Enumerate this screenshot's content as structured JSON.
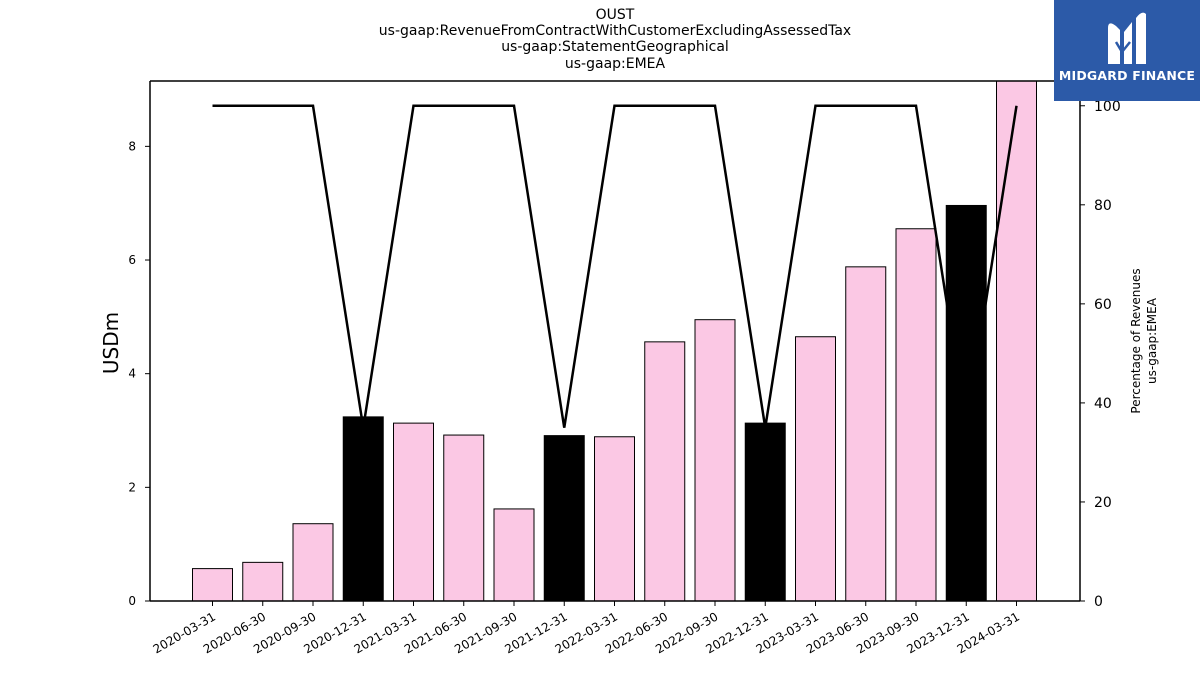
{
  "title_lines": [
    "OUST",
    "us-gaap:RevenueFromContractWithCustomerExcludingAssessedTax",
    "us-gaap:StatementGeographical",
    "us-gaap:EMEA"
  ],
  "logo": {
    "text": "MIDGARD FINANCE",
    "background": "#2c5aa8"
  },
  "chart_data": {
    "type": "bar",
    "categories": [
      "2020-03-31",
      "2020-06-30",
      "2020-09-30",
      "2020-12-31",
      "2021-03-31",
      "2021-06-30",
      "2021-09-30",
      "2021-12-31",
      "2022-03-31",
      "2022-06-30",
      "2022-09-30",
      "2022-12-31",
      "2023-03-31",
      "2023-06-30",
      "2023-09-30",
      "2023-12-31",
      "2024-03-31"
    ],
    "series": [
      {
        "kind": "bar",
        "axis": "left",
        "values": [
          0.57,
          0.68,
          1.36,
          3.24,
          3.13,
          2.92,
          1.62,
          2.91,
          2.89,
          4.56,
          4.95,
          3.13,
          4.65,
          5.88,
          6.55,
          6.96,
          9.2
        ],
        "colors": [
          "#fbc8e4",
          "#fbc8e4",
          "#fbc8e4",
          "#000000",
          "#fbc8e4",
          "#fbc8e4",
          "#fbc8e4",
          "#000000",
          "#fbc8e4",
          "#fbc8e4",
          "#fbc8e4",
          "#000000",
          "#fbc8e4",
          "#fbc8e4",
          "#fbc8e4",
          "#000000",
          "#fbc8e4"
        ]
      },
      {
        "kind": "line",
        "axis": "right",
        "color": "#000000",
        "values": [
          100,
          100,
          100,
          35,
          100,
          100,
          100,
          35,
          100,
          100,
          100,
          35,
          100,
          100,
          100,
          35,
          100
        ]
      }
    ],
    "ylabel": "USDm",
    "y2label_lines": [
      "Percentage of Revenues",
      "us-gaap:EMEA"
    ],
    "ylim": [
      0,
      9.15
    ],
    "y2lim": [
      0,
      105
    ],
    "yticks": [
      0,
      2,
      4,
      6,
      8
    ],
    "y2ticks": [
      0,
      20,
      40,
      60,
      80,
      100
    ],
    "grid": false,
    "bar_colors": {
      "regular": "#fbc8e4",
      "year_end": "#000000"
    }
  }
}
